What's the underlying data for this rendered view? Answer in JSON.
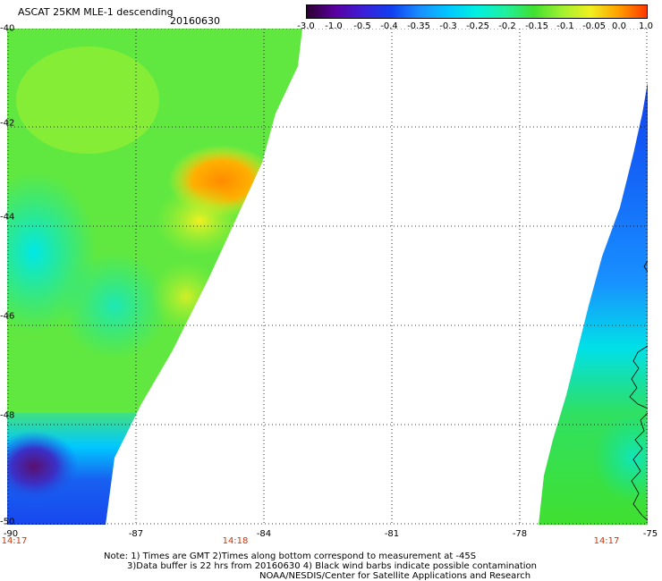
{
  "header": {
    "title": "ASCAT 25KM MLE-1 descending",
    "date": "20160630"
  },
  "colorbar": {
    "labels": [
      "-3.0",
      "-1.0",
      "-0.5",
      "-0.4",
      "-0.35",
      "-0.3",
      "-0.25",
      "-0.2",
      "-0.15",
      "-0.1",
      "-0.05",
      "0.0",
      "1.0"
    ],
    "colors": [
      "#2b0030",
      "#5a00a0",
      "#3b20d8",
      "#1040f0",
      "#1890ff",
      "#00c8ff",
      "#00f0e0",
      "#20f0a0",
      "#40e030",
      "#a0f030",
      "#f0f020",
      "#ffa000",
      "#ff3800"
    ]
  },
  "map": {
    "lat_labels": [
      "-40",
      "-42",
      "-44",
      "-46",
      "-48",
      "-50"
    ],
    "lon_labels": [
      "-90",
      "-87",
      "-84",
      "-81",
      "-78",
      "-75"
    ],
    "time_labels": {
      "left": "14:17",
      "middle": "14:18",
      "right": "14:17"
    }
  },
  "notes": {
    "line1": "Note: 1) Times are GMT 2)Times along bottom correspond to measurement at -45S",
    "line2": "3)Data buffer is 22 hrs from 20160630 4) Black wind barbs indicate possible contamination",
    "line3": "NOAA/NESDIS/Center for Satellite Applications and Research"
  }
}
